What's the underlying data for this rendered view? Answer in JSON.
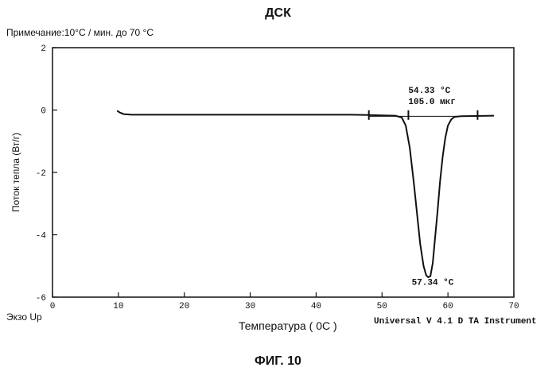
{
  "title": "ДСК",
  "note": "Примечание:10°С / мин. до 70 °С",
  "exo_label": "Экзо Up",
  "instrument": "Universal V 4.1 D TA Instrument",
  "figure_caption": "ФИГ. 10",
  "chart_data": {
    "type": "line",
    "title": "ДСК",
    "xlabel": "Температура ( 0C )",
    "ylabel": "Поток тепла (Вт/г)",
    "xlim": [
      0,
      70
    ],
    "ylim": [
      -6,
      2
    ],
    "xticks": [
      0,
      10,
      20,
      30,
      40,
      50,
      60,
      70
    ],
    "yticks": [
      2,
      0,
      -2,
      -4,
      -6
    ],
    "grid": false,
    "series": [
      {
        "x": [
          9.8,
          10.2,
          10.8,
          12,
          15,
          20,
          30,
          40,
          45,
          48,
          50,
          52,
          53,
          53.6,
          54.2,
          54.8,
          55.3,
          55.8,
          56.3,
          56.7,
          57.0,
          57.34,
          57.7,
          58.0,
          58.4,
          58.8,
          59.2,
          59.6,
          60.0,
          60.5,
          61,
          62,
          64,
          67
        ],
        "y": [
          -0.02,
          -0.08,
          -0.13,
          -0.15,
          -0.15,
          -0.15,
          -0.15,
          -0.15,
          -0.15,
          -0.16,
          -0.17,
          -0.18,
          -0.24,
          -0.5,
          -1.2,
          -2.3,
          -3.3,
          -4.3,
          -5.0,
          -5.3,
          -5.36,
          -5.33,
          -4.9,
          -4.2,
          -3.3,
          -2.3,
          -1.5,
          -0.9,
          -0.5,
          -0.3,
          -0.22,
          -0.2,
          -0.19,
          -0.18
        ]
      }
    ],
    "markers_x": [
      48,
      54,
      64.5
    ],
    "annotations": [
      {
        "x": 54,
        "y": 0.55,
        "lines": [
          "54.33 °C",
          "105.0 мкг"
        ]
      },
      {
        "x": 54.5,
        "y": -5.6,
        "lines": [
          "57.34 °C"
        ]
      }
    ]
  }
}
